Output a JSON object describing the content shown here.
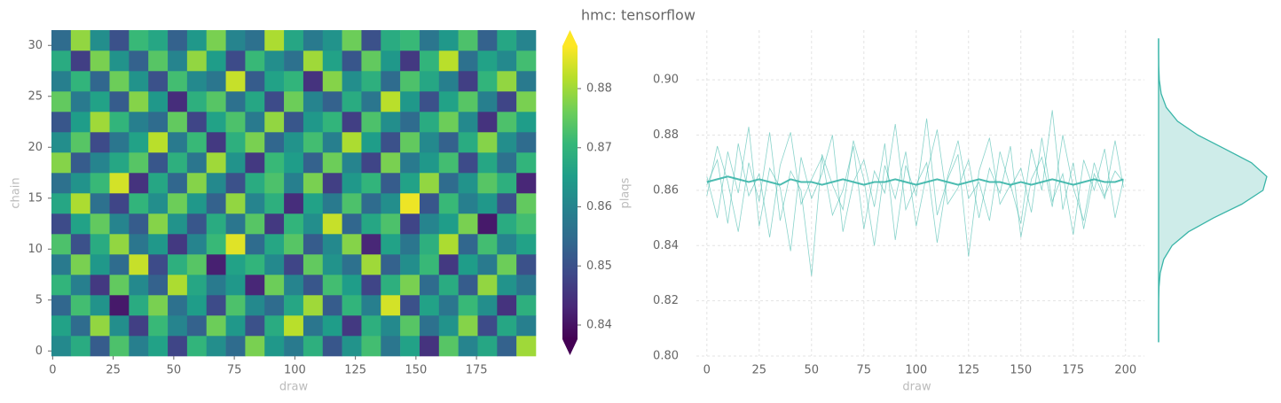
{
  "title": "hmc: tensorflow",
  "chart_data": [
    {
      "type": "heatmap",
      "x_label": "draw",
      "y_label": "chain",
      "xlim": [
        -0.5,
        199.5
      ],
      "ylim": [
        -0.5,
        31.5
      ],
      "xticks": [
        0,
        25,
        50,
        75,
        100,
        125,
        150,
        175
      ],
      "yticks": [
        0,
        5,
        10,
        15,
        20,
        25,
        30
      ],
      "xbins": [
        -0.5,
        7.5,
        15.5,
        23.5,
        31.5,
        39.5,
        47.5,
        55.5,
        63.5,
        71.5,
        79.5,
        87.5,
        95.5,
        103.5,
        111.5,
        119.5,
        127.5,
        135.5,
        143.5,
        151.5,
        159.5,
        167.5,
        175.5,
        183.5,
        191.5,
        199.5
      ],
      "ybins": [
        -0.5,
        1.5,
        3.5,
        5.5,
        7.5,
        9.5,
        11.5,
        13.5,
        15.5,
        17.5,
        19.5,
        21.5,
        23.5,
        25.5,
        27.5,
        29.5,
        31.5
      ],
      "values": [
        [
          0.861,
          0.868,
          0.852,
          0.873,
          0.859,
          0.866,
          0.848,
          0.87,
          0.862,
          0.855,
          0.877,
          0.864,
          0.858,
          0.869,
          0.851,
          0.863,
          0.872,
          0.857,
          0.866,
          0.845,
          0.874,
          0.86,
          0.867,
          0.853,
          0.88
        ],
        [
          0.866,
          0.855,
          0.879,
          0.862,
          0.847,
          0.871,
          0.86,
          0.853,
          0.876,
          0.864,
          0.85,
          0.868,
          0.882,
          0.857,
          0.865,
          0.846,
          0.869,
          0.861,
          0.874,
          0.856,
          0.863,
          0.878,
          0.849,
          0.867,
          0.859
        ],
        [
          0.854,
          0.872,
          0.863,
          0.841,
          0.868,
          0.877,
          0.856,
          0.865,
          0.849,
          0.873,
          0.861,
          0.855,
          0.867,
          0.88,
          0.852,
          0.87,
          0.859,
          0.884,
          0.85,
          0.866,
          0.857,
          0.871,
          0.862,
          0.845,
          0.869
        ],
        [
          0.87,
          0.859,
          0.846,
          0.875,
          0.861,
          0.853,
          0.881,
          0.867,
          0.858,
          0.864,
          0.843,
          0.876,
          0.86,
          0.851,
          0.872,
          0.865,
          0.848,
          0.869,
          0.877,
          0.855,
          0.868,
          0.852,
          0.879,
          0.863,
          0.857
        ],
        [
          0.858,
          0.877,
          0.864,
          0.855,
          0.883,
          0.849,
          0.869,
          0.874,
          0.842,
          0.866,
          0.87,
          0.861,
          0.848,
          0.875,
          0.863,
          0.856,
          0.88,
          0.853,
          0.862,
          0.871,
          0.846,
          0.865,
          0.858,
          0.876,
          0.85
        ],
        [
          0.873,
          0.85,
          0.868,
          0.879,
          0.857,
          0.864,
          0.846,
          0.86,
          0.871,
          0.885,
          0.855,
          0.867,
          0.874,
          0.852,
          0.861,
          0.878,
          0.843,
          0.866,
          0.857,
          0.869,
          0.881,
          0.854,
          0.872,
          0.86,
          0.866
        ],
        [
          0.849,
          0.866,
          0.875,
          0.86,
          0.852,
          0.878,
          0.863,
          0.851,
          0.868,
          0.857,
          0.874,
          0.846,
          0.87,
          0.862,
          0.883,
          0.854,
          0.867,
          0.873,
          0.848,
          0.86,
          0.865,
          0.877,
          0.841,
          0.868,
          0.872
        ],
        [
          0.867,
          0.881,
          0.856,
          0.848,
          0.87,
          0.862,
          0.876,
          0.864,
          0.853,
          0.879,
          0.86,
          0.869,
          0.844,
          0.866,
          0.858,
          0.873,
          0.855,
          0.862,
          0.886,
          0.851,
          0.871,
          0.859,
          0.864,
          0.85,
          0.875
        ],
        [
          0.856,
          0.863,
          0.871,
          0.884,
          0.845,
          0.867,
          0.854,
          0.878,
          0.861,
          0.85,
          0.868,
          0.873,
          0.859,
          0.877,
          0.847,
          0.864,
          0.87,
          0.852,
          0.866,
          0.879,
          0.855,
          0.863,
          0.874,
          0.869,
          0.843
        ],
        [
          0.878,
          0.852,
          0.86,
          0.867,
          0.874,
          0.851,
          0.869,
          0.857,
          0.88,
          0.863,
          0.846,
          0.871,
          0.865,
          0.853,
          0.876,
          0.86,
          0.848,
          0.877,
          0.858,
          0.864,
          0.872,
          0.849,
          0.867,
          0.856,
          0.87
        ],
        [
          0.862,
          0.874,
          0.849,
          0.857,
          0.866,
          0.882,
          0.858,
          0.871,
          0.846,
          0.869,
          0.877,
          0.854,
          0.863,
          0.872,
          0.859,
          0.881,
          0.865,
          0.85,
          0.875,
          0.861,
          0.853,
          0.868,
          0.878,
          0.862,
          0.855
        ],
        [
          0.851,
          0.865,
          0.88,
          0.87,
          0.859,
          0.855,
          0.875,
          0.848,
          0.866,
          0.873,
          0.858,
          0.879,
          0.851,
          0.864,
          0.87,
          0.847,
          0.873,
          0.862,
          0.855,
          0.868,
          0.876,
          0.861,
          0.845,
          0.873,
          0.865
        ],
        [
          0.875,
          0.858,
          0.866,
          0.852,
          0.878,
          0.864,
          0.844,
          0.869,
          0.874,
          0.856,
          0.867,
          0.849,
          0.876,
          0.86,
          0.853,
          0.868,
          0.857,
          0.882,
          0.864,
          0.85,
          0.866,
          0.874,
          0.859,
          0.848,
          0.877
        ],
        [
          0.859,
          0.87,
          0.854,
          0.876,
          0.863,
          0.85,
          0.872,
          0.861,
          0.857,
          0.883,
          0.852,
          0.866,
          0.87,
          0.845,
          0.878,
          0.862,
          0.869,
          0.855,
          0.873,
          0.867,
          0.859,
          0.847,
          0.87,
          0.879,
          0.858
        ],
        [
          0.868,
          0.847,
          0.877,
          0.863,
          0.853,
          0.874,
          0.86,
          0.879,
          0.865,
          0.849,
          0.871,
          0.862,
          0.856,
          0.88,
          0.866,
          0.851,
          0.875,
          0.864,
          0.846,
          0.87,
          0.882,
          0.856,
          0.866,
          0.861,
          0.872
        ],
        [
          0.855,
          0.879,
          0.862,
          0.85,
          0.871,
          0.867,
          0.853,
          0.864,
          0.877,
          0.86,
          0.856,
          0.881,
          0.867,
          0.858,
          0.863,
          0.876,
          0.85,
          0.868,
          0.871,
          0.857,
          0.864,
          0.873,
          0.853,
          0.867,
          0.86
        ]
      ],
      "colorbar": {
        "label": "plaqs",
        "clim": [
          0.8376,
          0.8872
        ],
        "ticks": [
          0.84,
          0.85,
          0.86,
          0.87,
          0.88
        ],
        "colormap": [
          "#440154",
          "#482878",
          "#3e4989",
          "#31688e",
          "#26828e",
          "#1f9e89",
          "#35b779",
          "#6ece58",
          "#b5de2b",
          "#fde725"
        ]
      }
    },
    {
      "type": "line",
      "x_label": "draw",
      "color": "#3ab5a8",
      "grid": true,
      "xlim": [
        -5,
        209
      ],
      "ylim": [
        0.8,
        0.918
      ],
      "xticks": [
        0,
        25,
        50,
        75,
        100,
        125,
        150,
        175,
        200
      ],
      "yticks": [
        {
          "value": 0.8,
          "label": "0.80"
        },
        0.82,
        0.84,
        0.86,
        0.88,
        {
          "value": 0.9,
          "label": "0.90"
        }
      ],
      "x": [
        0,
        5,
        10,
        15,
        20,
        25,
        30,
        35,
        40,
        45,
        50,
        55,
        60,
        65,
        70,
        75,
        80,
        85,
        90,
        95,
        100,
        105,
        110,
        115,
        120,
        125,
        130,
        135,
        140,
        145,
        150,
        155,
        160,
        165,
        170,
        175,
        180,
        185,
        190,
        195,
        199
      ],
      "series": [
        {
          "values": [
            0.862,
            0.871,
            0.848,
            0.877,
            0.858,
            0.866,
            0.843,
            0.869,
            0.881,
            0.855,
            0.864,
            0.872,
            0.851,
            0.86,
            0.876,
            0.846,
            0.867,
            0.859,
            0.884,
            0.853,
            0.862,
            0.87,
            0.841,
            0.865,
            0.878,
            0.857,
            0.863,
            0.849,
            0.874,
            0.861,
            0.868,
            0.852,
            0.879,
            0.856,
            0.866,
            0.844,
            0.871,
            0.86,
            0.875,
            0.85,
            0.864
          ]
        },
        {
          "values": [
            0.865,
            0.85,
            0.874,
            0.859,
            0.883,
            0.847,
            0.868,
            0.861,
            0.838,
            0.872,
            0.857,
            0.866,
            0.88,
            0.845,
            0.863,
            0.871,
            0.854,
            0.877,
            0.842,
            0.869,
            0.858,
            0.886,
            0.851,
            0.864,
            0.873,
            0.836,
            0.867,
            0.879,
            0.855,
            0.862,
            0.848,
            0.875,
            0.86,
            0.889,
            0.853,
            0.87,
            0.846,
            0.866,
            0.857,
            0.878,
            0.861
          ]
        },
        {
          "values": [
            0.858,
            0.876,
            0.863,
            0.845,
            0.87,
            0.856,
            0.881,
            0.849,
            0.867,
            0.86,
            0.829,
            0.873,
            0.862,
            0.853,
            0.878,
            0.864,
            0.84,
            0.869,
            0.857,
            0.874,
            0.847,
            0.866,
            0.882,
            0.855,
            0.861,
            0.871,
            0.85,
            0.868,
            0.859,
            0.876,
            0.843,
            0.864,
            0.872,
            0.854,
            0.88,
            0.861,
            0.849,
            0.87,
            0.858,
            0.867,
            0.863
          ]
        },
        {
          "values": [
            0.863,
            0.864,
            0.865,
            0.864,
            0.863,
            0.864,
            0.863,
            0.862,
            0.864,
            0.863,
            0.863,
            0.862,
            0.863,
            0.864,
            0.863,
            0.862,
            0.863,
            0.863,
            0.864,
            0.863,
            0.862,
            0.863,
            0.864,
            0.863,
            0.862,
            0.863,
            0.864,
            0.863,
            0.863,
            0.862,
            0.863,
            0.862,
            0.863,
            0.864,
            0.863,
            0.862,
            0.863,
            0.864,
            0.863,
            0.863,
            0.864
          ]
        }
      ],
      "kde": {
        "y": [
          0.805,
          0.81,
          0.815,
          0.82,
          0.825,
          0.83,
          0.835,
          0.84,
          0.845,
          0.85,
          0.855,
          0.86,
          0.865,
          0.87,
          0.875,
          0.88,
          0.885,
          0.89,
          0.895,
          0.9,
          0.905,
          0.91,
          0.915
        ],
        "density": [
          0,
          0,
          0,
          0.03,
          0.13,
          0.49,
          1.6,
          4.2,
          9.3,
          17.1,
          25.9,
          32.5,
          33.7,
          28.9,
          20.6,
          12.2,
          5.9,
          2.4,
          0.8,
          0.22,
          0.05,
          0.01,
          0
        ]
      }
    }
  ]
}
